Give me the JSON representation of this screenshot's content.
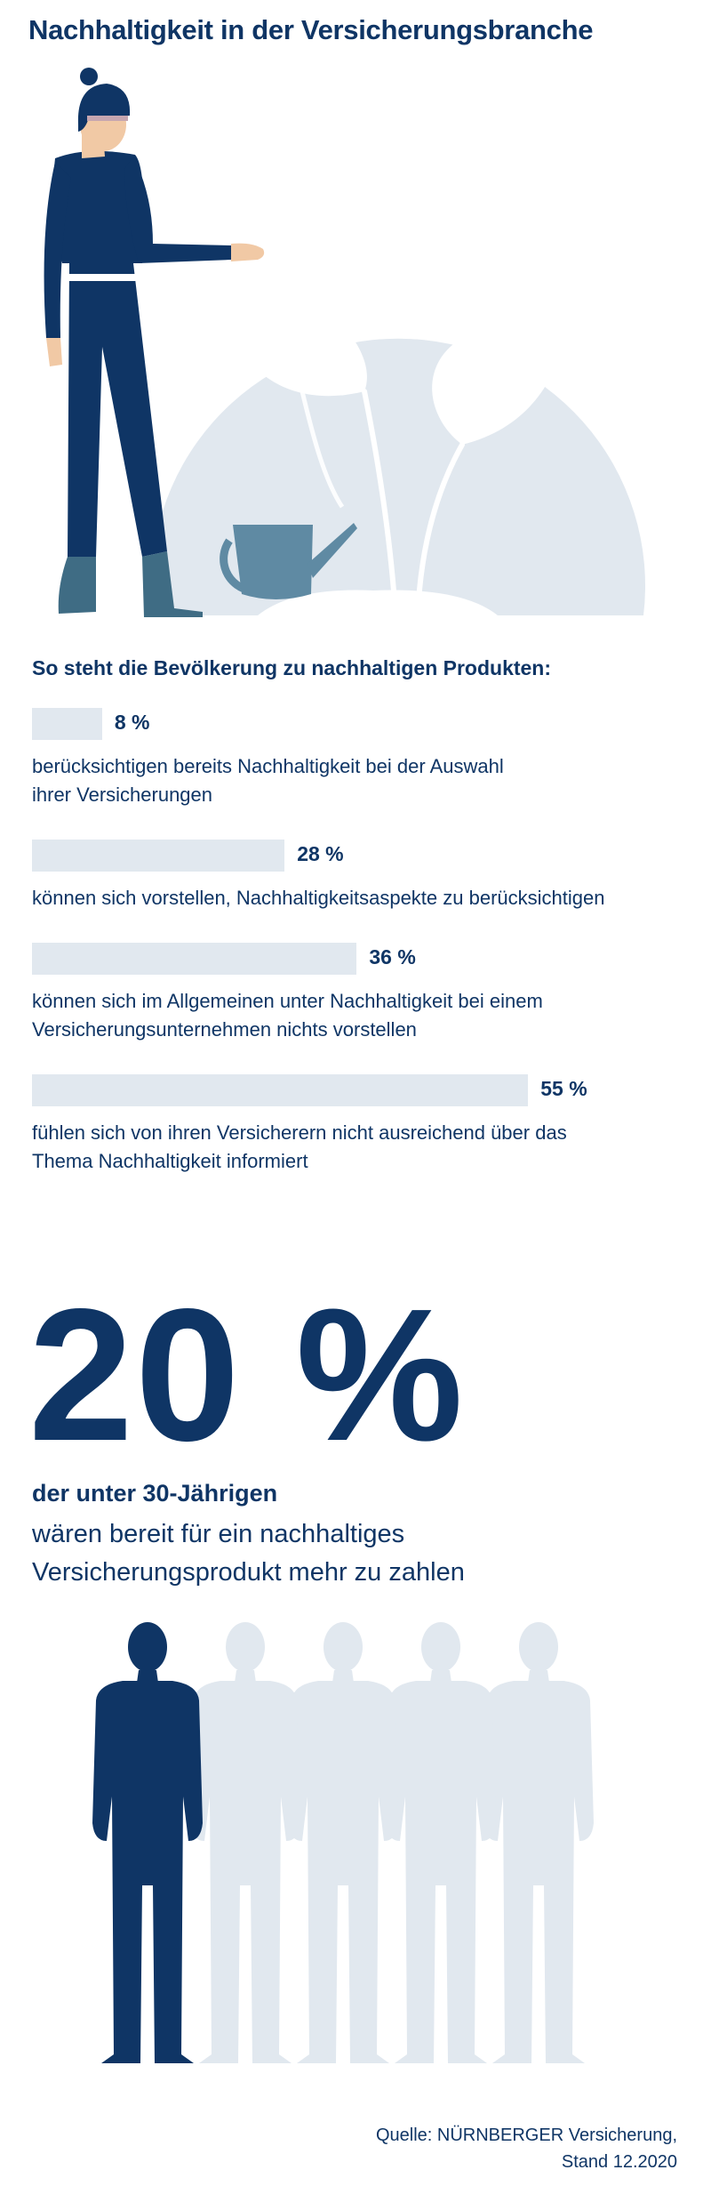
{
  "title": "Nachhaltigkeit in der Versicherungsbranche",
  "section_heading": "So steht die Bevölkerung zu nachhaltigen Produkten:",
  "colors": {
    "navy": "#0f3565",
    "bar": "#e1e8ef",
    "teal": "#3f6c84",
    "watering_can": "#5f8aa3",
    "skin": "#f1c9a5"
  },
  "chart_data": {
    "type": "bar",
    "orientation": "horizontal",
    "unit": "%",
    "xlim": [
      0,
      60
    ],
    "categories": [
      "berücksichtigen bereits Nachhaltigkeit bei der Auswahl ihrer Versicherungen",
      "können sich vorstellen, Nachhaltigkeitsaspekte zu berücksichtigen",
      "können sich im Allgemeinen unter Nachhaltigkeit bei einem Versicherungsunternehmen nichts vorstellen",
      "fühlen sich von ihren Versicherern nicht ausreichend über das Thema Nachhaltigkeit informiert"
    ],
    "values": [
      8,
      28,
      36,
      55
    ],
    "value_labels": [
      "8 %",
      "28 %",
      "36 %",
      "55 %"
    ]
  },
  "stats": [
    {
      "value_label": "8 %",
      "line1": "berücksichtigen bereits Nachhaltigkeit bei der Auswahl",
      "line2": "ihrer Versicherungen"
    },
    {
      "value_label": "28 %",
      "line1": "können sich vorstellen, Nachhaltigkeitsaspekte zu berücksichtigen",
      "line2": ""
    },
    {
      "value_label": "36 %",
      "line1": "können sich im Allgemeinen unter Nachhaltigkeit bei einem",
      "line2": "Versicherungsunternehmen nichts vorstellen"
    },
    {
      "value_label": "55 %",
      "line1": "fühlen sich von ihren Versicherern nicht ausreichend über das",
      "line2": "Thema Nachhaltigkeit informiert"
    }
  ],
  "highlight": {
    "value": "20 %",
    "subtitle": "der unter 30-Jährigen",
    "line1": "wären bereit für ein nachhaltiges",
    "line2": "Versicherungsprodukt mehr zu zahlen",
    "people_total": 5,
    "people_highlighted": 1
  },
  "source": {
    "line1": "Quelle: NÜRNBERGER Versicherung,",
    "line2": "Stand 12.2020"
  }
}
